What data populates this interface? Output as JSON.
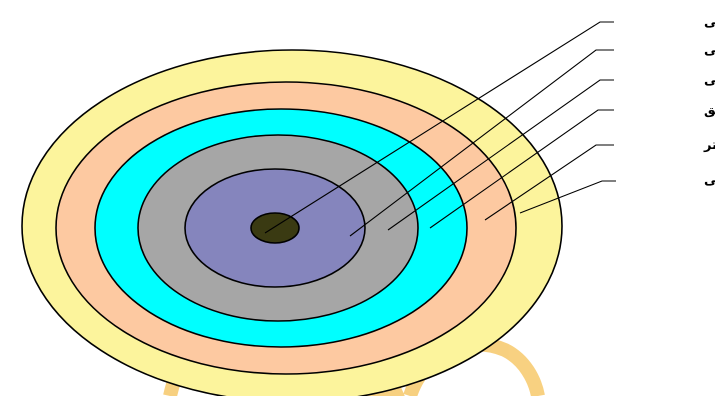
{
  "diagram": {
    "layers": [
      {
        "id": "textual-reading",
        "label": "برداشت متنی",
        "color": "#3a3a12"
      },
      {
        "id": "textual-tendency",
        "label": "گرایش متنی",
        "color": "#8585bd"
      },
      {
        "id": "explanatory-analysis",
        "label": "تحلیل توجیهی",
        "color": "#a6a6a6"
      },
      {
        "id": "deep-analysis",
        "label": "تحلیل عمیق",
        "color": "#00ffff"
      },
      {
        "id": "deeper-analysis",
        "label": "تحلیل عمیق تر",
        "color": "#fdc9a1"
      },
      {
        "id": "complete-discourse-analysis",
        "label": "تحلیل کامل گفتمانی",
        "color": "#fcf49c"
      }
    ],
    "watermark_color": "#f2ab1a"
  }
}
